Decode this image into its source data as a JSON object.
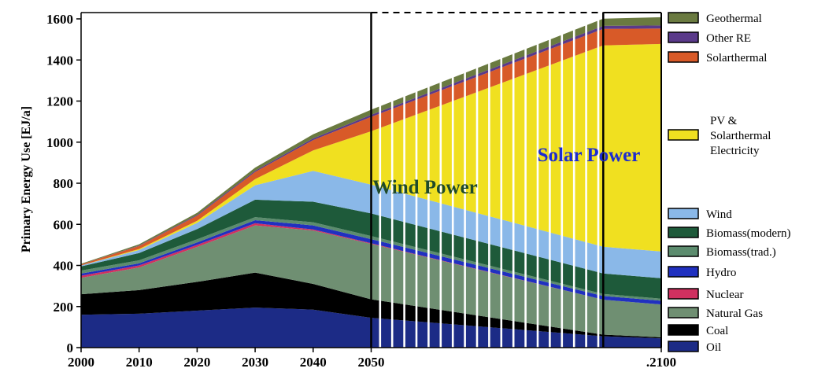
{
  "chart_data": {
    "type": "area",
    "title": "",
    "xlabel": "",
    "ylabel": "Primary Energy Use [EJ/a]",
    "xlim": [
      2000,
      2100
    ],
    "ylim": [
      0,
      1600
    ],
    "x": [
      2000,
      2010,
      2020,
      2030,
      2040,
      2050,
      2090,
      2100
    ],
    "x_tick_labels": [
      "2000",
      "2010",
      "2020",
      "2030",
      "2040",
      "2050",
      ".2100"
    ],
    "y_ticks": [
      0,
      200,
      400,
      600,
      800,
      1000,
      1200,
      1400,
      1600
    ],
    "stack_order_bottom_to_top": [
      "Oil",
      "Coal",
      "Natural Gas",
      "Nuclear",
      "Hydro",
      "Biomass(trad.)",
      "Biomass(modern)",
      "Wind",
      "PV & Solarthermal Electricity",
      "Solarthermal",
      "Other RE",
      "Geothermal"
    ],
    "series": [
      {
        "name": "Oil",
        "color": "#1c2b86",
        "values": [
          160,
          165,
          180,
          195,
          185,
          145,
          55,
          45
        ]
      },
      {
        "name": "Coal",
        "color": "#000000",
        "values": [
          100,
          115,
          140,
          170,
          125,
          90,
          8,
          5
        ]
      },
      {
        "name": "Natural Gas",
        "color": "#6f8f72",
        "values": [
          80,
          110,
          170,
          230,
          260,
          270,
          170,
          160
        ]
      },
      {
        "name": "Nuclear",
        "color": "#d03060",
        "values": [
          10,
          10,
          10,
          10,
          5,
          3,
          0,
          0
        ]
      },
      {
        "name": "Hydro",
        "color": "#2030c0",
        "values": [
          10,
          10,
          12,
          15,
          20,
          20,
          18,
          18
        ]
      },
      {
        "name": "Biomass(trad.)",
        "color": "#5c8c6e",
        "values": [
          15,
          15,
          15,
          15,
          15,
          15,
          10,
          10
        ]
      },
      {
        "name": "Biomass(modern)",
        "color": "#1e5a3a",
        "values": [
          20,
          35,
          50,
          85,
          100,
          110,
          100,
          100
        ]
      },
      {
        "name": "Wind",
        "color": "#8ab8e8",
        "values": [
          5,
          15,
          30,
          70,
          150,
          140,
          130,
          130
        ]
      },
      {
        "name": "PV & Solarthermal Electricity",
        "color": "#f0e020",
        "values": [
          0,
          5,
          10,
          30,
          100,
          260,
          980,
          1010
        ]
      },
      {
        "name": "Solarthermal",
        "color": "#d85a28",
        "values": [
          5,
          15,
          25,
          35,
          50,
          70,
          80,
          75
        ]
      },
      {
        "name": "Other RE",
        "color": "#5a3a8a",
        "values": [
          0,
          2,
          4,
          6,
          8,
          10,
          15,
          15
        ]
      },
      {
        "name": "Geothermal",
        "color": "#6a7a40",
        "values": [
          3,
          6,
          10,
          15,
          20,
          25,
          35,
          40
        ]
      }
    ],
    "annotations": [
      {
        "text": "Wind Power",
        "color": "#1f4a2a"
      },
      {
        "text": "Solar Power",
        "color": "#1c2bd0"
      }
    ],
    "legend_position": "right",
    "legend_top_group": [
      {
        "label": "Geothermal",
        "color": "#6a7a40"
      },
      {
        "label": "Other RE",
        "color": "#5a3a8a"
      },
      {
        "label": "Solarthermal",
        "color": "#d85a28"
      }
    ],
    "legend_pv": {
      "label_lines": [
        "PV  &",
        "Solarthermal",
        "Electricity"
      ],
      "color": "#f0e020"
    },
    "legend_bottom_group": [
      {
        "label": "Wind",
        "color": "#8ab8e8"
      },
      {
        "label": "Biomass(modern)",
        "color": "#1e5a3a"
      },
      {
        "label": "Biomass(trad.)",
        "color": "#5c8c6e"
      },
      {
        "label": "Hydro",
        "color": "#2030c0"
      },
      {
        "label": "Nuclear",
        "color": "#d03060"
      },
      {
        "label": "Natural Gas",
        "color": "#6f8f72"
      },
      {
        "label": "Coal",
        "color": "#000000"
      },
      {
        "label": "Oil",
        "color": "#1c2b86"
      }
    ],
    "grid": false
  }
}
